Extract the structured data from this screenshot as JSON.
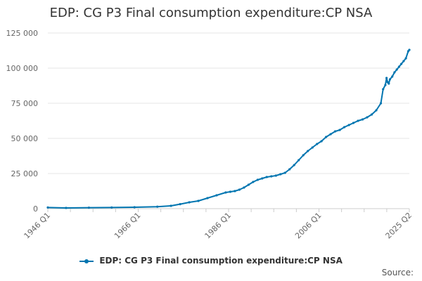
{
  "chart_data": {
    "type": "line",
    "title": "EDP: CG P3 Final consumption expenditure:CP NSA",
    "xlabel": "",
    "ylabel": "",
    "x_ticks": [
      "1946 Q1",
      "1966 Q1",
      "1986 Q1",
      "2006 Q1",
      "2025 Q2"
    ],
    "y_ticks": [
      "0",
      "25 000",
      "50 000",
      "75 000",
      "100 000",
      "125 000"
    ],
    "ylim": [
      0,
      125000
    ],
    "xlim": [
      1946.0,
      2025.25
    ],
    "grid": "horizontal",
    "legend_position": "bottom",
    "series": [
      {
        "name": "EDP: CG P3 Final consumption expenditure:CP NSA",
        "color": "#0075b0",
        "x": [
          1946,
          1950,
          1955,
          1960,
          1965,
          1970,
          1973,
          1975,
          1977,
          1979,
          1981,
          1983,
          1985,
          1986,
          1987,
          1988,
          1989,
          1990,
          1991,
          1992,
          1993,
          1994,
          1995,
          1996,
          1997,
          1998,
          1999,
          2000,
          2001,
          2002,
          2003,
          2004,
          2005,
          2006,
          2007,
          2008,
          2009,
          2010,
          2011,
          2012,
          2013,
          2014,
          2015,
          2016,
          2017,
          2018,
          2019,
          2019.5,
          2020,
          2020.25,
          2020.5,
          2020.75,
          2021,
          2021.5,
          2022,
          2022.5,
          2023,
          2023.5,
          2024,
          2024.5,
          2025,
          2025.25
        ],
        "y": [
          800,
          500,
          700,
          800,
          1000,
          1400,
          2000,
          3200,
          4500,
          5500,
          7500,
          9500,
          11500,
          12000,
          12500,
          13500,
          15000,
          17000,
          19000,
          20500,
          21500,
          22500,
          23000,
          23500,
          24500,
          25500,
          28000,
          31000,
          34500,
          38000,
          41000,
          43500,
          46000,
          48000,
          51000,
          53000,
          55000,
          56000,
          58000,
          59500,
          61000,
          62500,
          63500,
          65000,
          67000,
          70000,
          75000,
          85000,
          88000,
          93000,
          90000,
          89000,
          92000,
          94000,
          97000,
          99000,
          101000,
          103000,
          105000,
          107000,
          112000,
          113000
        ]
      }
    ]
  },
  "legend": {
    "label": "EDP: CG P3 Final consumption expenditure:CP NSA"
  },
  "footer": {
    "source_label": "Source:"
  }
}
